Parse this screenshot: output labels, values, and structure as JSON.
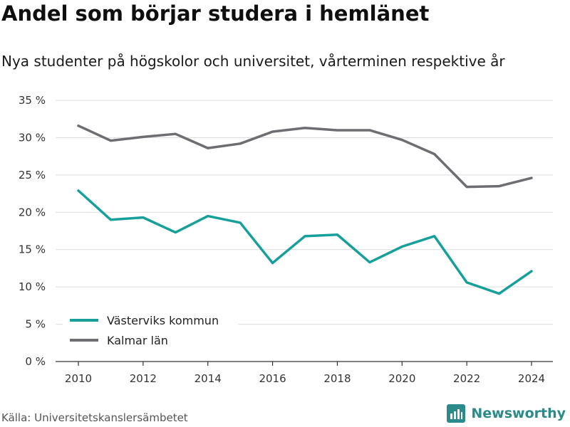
{
  "title": "Andel som börjar studera i hemlänet",
  "subtitle": "Nya studenter på högskolor och universitet, vårterminen respektive år",
  "source": "Källa: Universitetskanslersämbetet",
  "brand": {
    "name": "Newsworthy",
    "icon": "newsworthy-logo-icon",
    "color": "#2b8a8a"
  },
  "chart_data": {
    "type": "line",
    "title": "Andel som börjar studera i hemlänet",
    "subtitle": "Nya studenter på högskolor och universitet, vårterminen respektive år",
    "x": [
      2010,
      2011,
      2012,
      2013,
      2014,
      2015,
      2016,
      2017,
      2018,
      2019,
      2020,
      2021,
      2022,
      2023,
      2024
    ],
    "series": [
      {
        "name": "Västerviks kommun",
        "color": "#17a09a",
        "values": [
          22.9,
          19.0,
          19.3,
          17.3,
          19.5,
          18.6,
          13.2,
          16.8,
          17.0,
          13.3,
          15.4,
          16.8,
          10.6,
          9.1,
          12.1
        ]
      },
      {
        "name": "Kalmar län",
        "color": "#6d6d72",
        "values": [
          31.6,
          29.6,
          30.1,
          30.5,
          28.6,
          29.2,
          30.8,
          31.3,
          31.0,
          31.0,
          29.7,
          27.8,
          23.4,
          23.5,
          24.6
        ]
      }
    ],
    "ylim": [
      0,
      35
    ],
    "yticks": [
      0,
      5,
      10,
      15,
      20,
      25,
      30,
      35
    ],
    "ytick_labels": [
      "0 %",
      "5 %",
      "10 %",
      "15 %",
      "20 %",
      "25 %",
      "30 %",
      "35 %"
    ],
    "xticks": [
      2010,
      2012,
      2014,
      2016,
      2018,
      2020,
      2022,
      2024
    ],
    "xtick_labels": [
      "2010",
      "2012",
      "2014",
      "2016",
      "2018",
      "2020",
      "2022",
      "2024"
    ],
    "xlabel": "",
    "ylabel": "",
    "grid": true,
    "legend": "bottom-left"
  }
}
